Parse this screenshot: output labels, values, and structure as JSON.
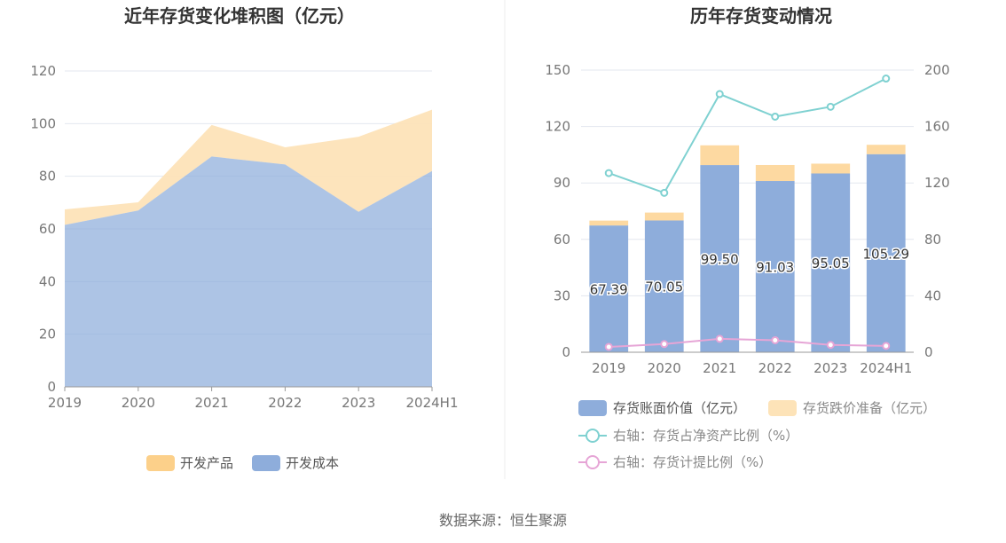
{
  "source": "数据来源：恒生聚源",
  "colors": {
    "product": "#fcd08a",
    "cost": "#8eaddb",
    "book": "#8eaddb",
    "reserve": "#fde3b8",
    "net_ratio": "#7fd1d1",
    "provision_ratio": "#e6a5d6",
    "grid": "#e3e7ef",
    "axis": "#999999"
  },
  "chart_data": [
    {
      "type": "area",
      "stacked": true,
      "title": "近年存货变化堆积图（亿元）",
      "categories": [
        "2019",
        "2020",
        "2021",
        "2022",
        "2023",
        "2024H1"
      ],
      "ylim": [
        0,
        120
      ],
      "yticks": [
        "0",
        "20",
        "40",
        "60",
        "80",
        "100",
        "120"
      ],
      "grid": true,
      "legend_position": "bottom",
      "series": [
        {
          "name": "开发成本",
          "values": [
            61.5,
            67.0,
            87.5,
            84.5,
            66.5,
            82.0
          ]
        },
        {
          "name": "开发产品",
          "values": [
            5.9,
            3.1,
            12.0,
            6.5,
            28.5,
            23.3
          ]
        }
      ],
      "legend": [
        "开发产品",
        "开发成本"
      ]
    },
    {
      "type": "bar",
      "stacked": true,
      "title": "历年存货变动情况",
      "categories": [
        "2019",
        "2020",
        "2021",
        "2022",
        "2023",
        "2024H1"
      ],
      "ylim_left": [
        0,
        150
      ],
      "yticks_left": [
        "0",
        "30",
        "60",
        "90",
        "120",
        "150"
      ],
      "ylim_right": [
        0,
        200
      ],
      "yticks_right": [
        "0",
        "40",
        "80",
        "120",
        "160",
        "200"
      ],
      "grid": true,
      "legend_position": "bottom",
      "series": [
        {
          "name": "存货账面价值（亿元）",
          "axis": "left",
          "values": [
            67.39,
            70.05,
            99.5,
            91.03,
            95.05,
            105.29
          ],
          "labels": [
            "67.39",
            "70.05",
            "99.50",
            "91.03",
            "95.05",
            "105.29"
          ]
        },
        {
          "name": "存货跌价准备（亿元）",
          "axis": "left",
          "values": [
            2.6,
            4.2,
            10.5,
            8.5,
            5.2,
            5.0
          ]
        },
        {
          "name": "右轴：存货占净资产比例（%）",
          "axis": "right",
          "type": "line",
          "values": [
            127,
            113,
            183,
            167,
            174,
            194
          ]
        },
        {
          "name": "右轴：存货计提比例（%）",
          "axis": "right",
          "type": "line",
          "values": [
            3.8,
            5.8,
            9.5,
            8.5,
            5.2,
            4.5
          ]
        }
      ]
    }
  ]
}
